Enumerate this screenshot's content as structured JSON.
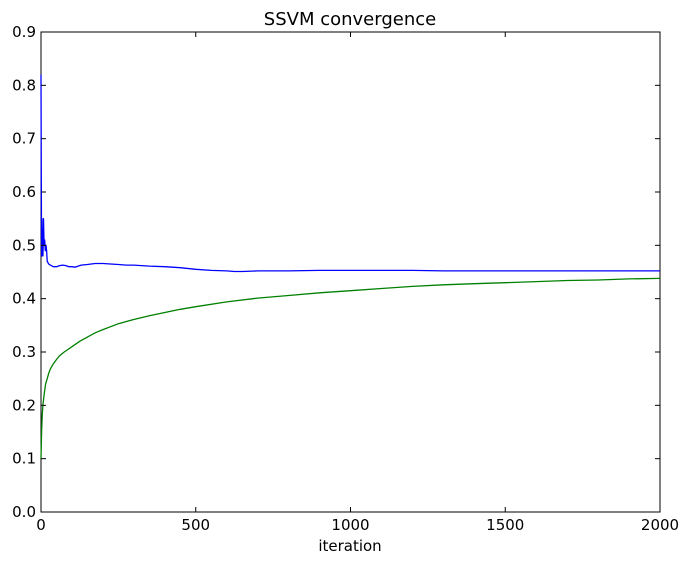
{
  "chart_data": {
    "type": "line",
    "title": "SSVM convergence",
    "xlabel": "iteration",
    "ylabel": "",
    "xlim": [
      0,
      2000
    ],
    "ylim": [
      0,
      0.9
    ],
    "xticks": [
      0,
      500,
      1000,
      1500,
      2000
    ],
    "xtick_labels": [
      "0",
      "500",
      "1000",
      "1500",
      "2000"
    ],
    "yticks": [
      0.0,
      0.1,
      0.2,
      0.3,
      0.4,
      0.5,
      0.6,
      0.7,
      0.8,
      0.9
    ],
    "ytick_labels": [
      "0.0",
      "0.1",
      "0.2",
      "0.3",
      "0.4",
      "0.5",
      "0.6",
      "0.7",
      "0.8",
      "0.9"
    ],
    "grid": false,
    "legend": null,
    "series": [
      {
        "color": "#0000ff",
        "x": [
          0,
          1,
          2,
          3,
          4,
          5,
          6,
          7,
          8,
          10,
          12,
          14,
          16,
          18,
          20,
          25,
          30,
          40,
          50,
          60,
          70,
          80,
          90,
          100,
          110,
          120,
          130,
          150,
          175,
          200,
          225,
          250,
          275,
          300,
          350,
          400,
          450,
          500,
          550,
          600,
          625,
          650,
          700,
          800,
          900,
          1000,
          1100,
          1200,
          1300,
          1400,
          1500,
          1600,
          1700,
          1800,
          1900,
          2000
        ],
        "y": [
          0.82,
          0.62,
          0.48,
          0.55,
          0.5,
          0.53,
          0.48,
          0.5,
          0.55,
          0.5,
          0.51,
          0.49,
          0.5,
          0.49,
          0.47,
          0.465,
          0.463,
          0.46,
          0.46,
          0.462,
          0.463,
          0.462,
          0.46,
          0.46,
          0.459,
          0.461,
          0.463,
          0.464,
          0.466,
          0.466,
          0.465,
          0.464,
          0.463,
          0.463,
          0.461,
          0.46,
          0.458,
          0.455,
          0.453,
          0.452,
          0.451,
          0.451,
          0.452,
          0.452,
          0.453,
          0.453,
          0.453,
          0.453,
          0.452,
          0.452,
          0.452,
          0.452,
          0.452,
          0.452,
          0.452,
          0.452
        ]
      },
      {
        "color": "#008000",
        "x": [
          0,
          2,
          4,
          6,
          8,
          10,
          15,
          20,
          25,
          30,
          40,
          50,
          60,
          75,
          100,
          125,
          150,
          175,
          200,
          250,
          300,
          350,
          400,
          450,
          500,
          600,
          700,
          800,
          900,
          1000,
          1100,
          1200,
          1300,
          1400,
          1500,
          1600,
          1700,
          1800,
          1900,
          2000
        ],
        "y": [
          0.1,
          0.15,
          0.18,
          0.2,
          0.21,
          0.22,
          0.24,
          0.25,
          0.26,
          0.268,
          0.278,
          0.286,
          0.293,
          0.3,
          0.31,
          0.32,
          0.328,
          0.336,
          0.342,
          0.353,
          0.361,
          0.368,
          0.374,
          0.38,
          0.385,
          0.394,
          0.401,
          0.406,
          0.411,
          0.415,
          0.419,
          0.423,
          0.426,
          0.428,
          0.43,
          0.432,
          0.434,
          0.435,
          0.437,
          0.438
        ]
      }
    ]
  }
}
